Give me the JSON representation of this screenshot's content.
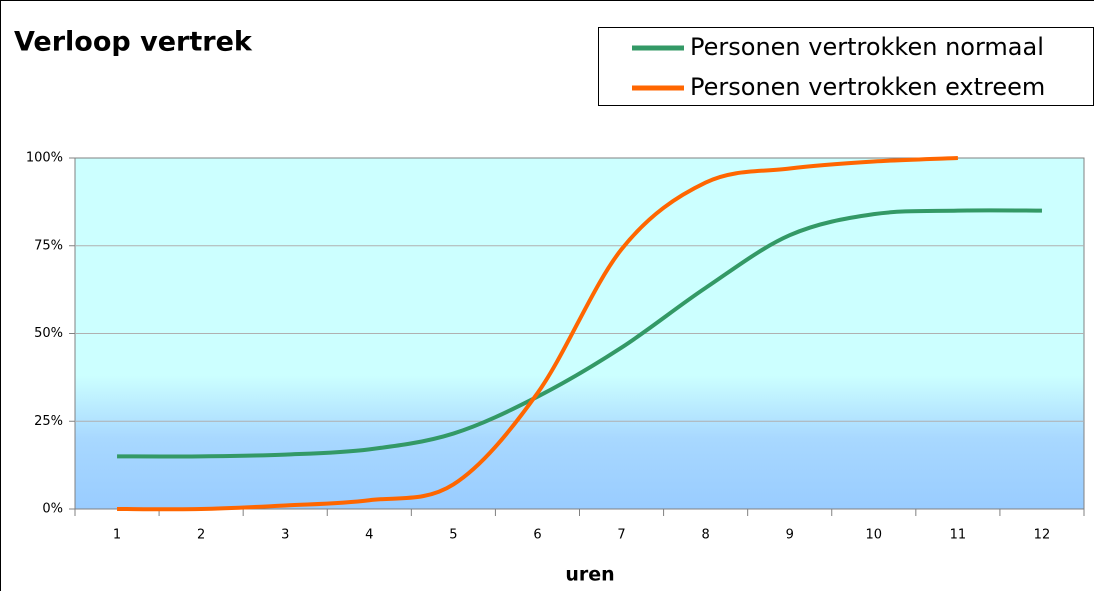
{
  "chart_data": {
    "type": "line",
    "title": "Verloop vertrek",
    "x_label": "uren",
    "categories": [
      "1",
      "2",
      "3",
      "4",
      "5",
      "6",
      "7",
      "8",
      "9",
      "10",
      "11",
      "12"
    ],
    "series": [
      {
        "name": "Personen vertrokken normaal",
        "color": "#339966",
        "values": [
          15,
          15,
          15.5,
          17,
          21.5,
          32,
          46,
          63,
          78,
          84,
          85,
          85
        ]
      },
      {
        "name": "Personen vertrokken extreem",
        "color": "#ff6600",
        "values": [
          0,
          0,
          1,
          2.5,
          7,
          33,
          74,
          93,
          97,
          99,
          100,
          null
        ]
      }
    ],
    "ylim": [
      0,
      100
    ],
    "yticks": [
      {
        "value": 0,
        "label": "0%"
      },
      {
        "value": 25,
        "label": "25%"
      },
      {
        "value": 50,
        "label": "50%"
      },
      {
        "value": 75,
        "label": "75%"
      },
      {
        "value": 100,
        "label": "100%"
      }
    ],
    "grid": true,
    "legend": "top-right"
  }
}
